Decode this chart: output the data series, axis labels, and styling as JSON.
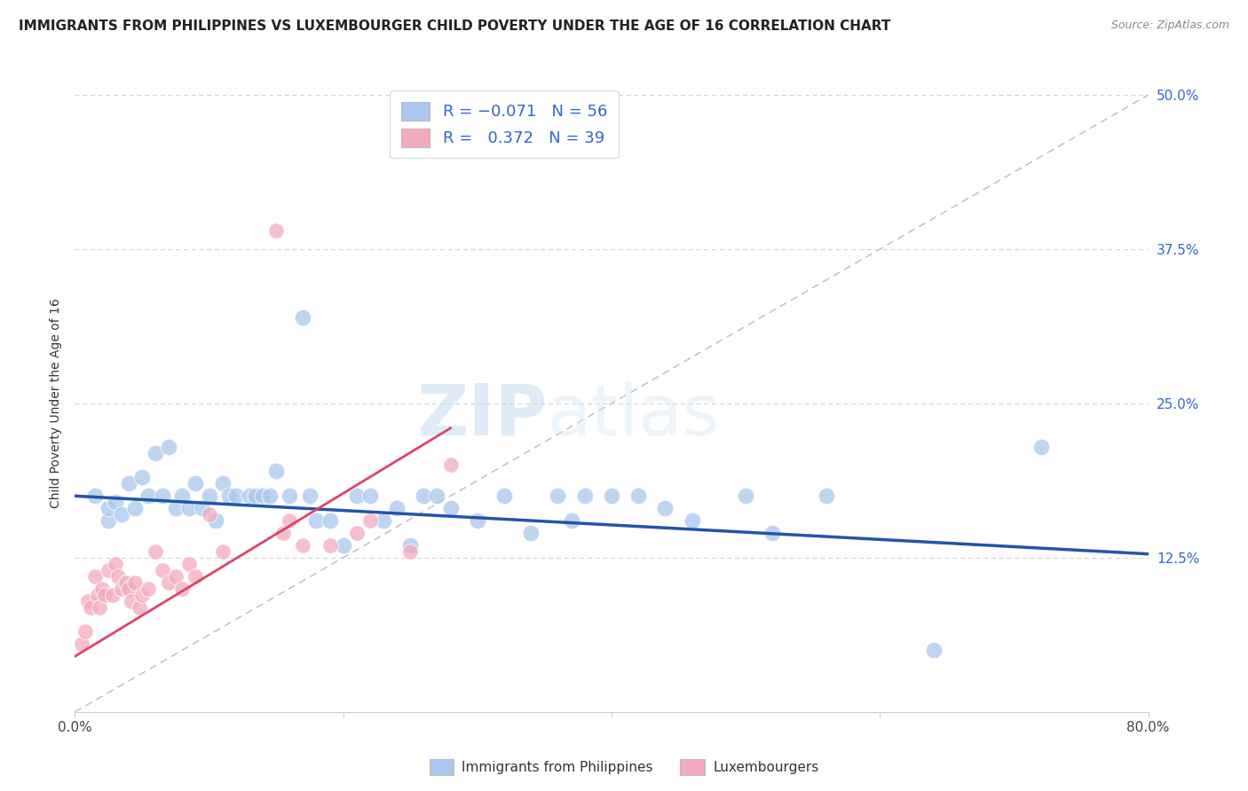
{
  "title": "IMMIGRANTS FROM PHILIPPINES VS LUXEMBOURGER CHILD POVERTY UNDER THE AGE OF 16 CORRELATION CHART",
  "source": "Source: ZipAtlas.com",
  "ylabel": "Child Poverty Under the Age of 16",
  "xlim": [
    0.0,
    0.8
  ],
  "ylim": [
    0.0,
    0.5
  ],
  "xticks": [
    0.0,
    0.2,
    0.4,
    0.6,
    0.8
  ],
  "yticks": [
    0.0,
    0.125,
    0.25,
    0.375,
    0.5
  ],
  "ytick_labels": [
    "",
    "12.5%",
    "25.0%",
    "37.5%",
    "50.0%"
  ],
  "legend_label1": "Immigrants from Philippines",
  "legend_label2": "Luxembourgers",
  "R1": -0.071,
  "N1": 56,
  "R2": 0.372,
  "N2": 39,
  "color_blue": "#A8C8EE",
  "color_pink": "#F4AABE",
  "color_blue_line": "#2255AA",
  "color_pink_line": "#DD4466",
  "color_ref_line": "#BBBBBB",
  "background_color": "#FFFFFF",
  "watermark_zip": "ZIP",
  "watermark_atlas": "atlas",
  "title_fontsize": 11,
  "axis_label_fontsize": 10,
  "tick_fontsize": 11,
  "blue_scatter_x": [
    0.015,
    0.025,
    0.025,
    0.03,
    0.035,
    0.04,
    0.045,
    0.05,
    0.055,
    0.06,
    0.065,
    0.07,
    0.075,
    0.08,
    0.085,
    0.09,
    0.095,
    0.1,
    0.105,
    0.11,
    0.115,
    0.12,
    0.13,
    0.135,
    0.14,
    0.145,
    0.15,
    0.16,
    0.17,
    0.175,
    0.18,
    0.19,
    0.2,
    0.21,
    0.22,
    0.23,
    0.24,
    0.25,
    0.26,
    0.27,
    0.28,
    0.3,
    0.32,
    0.34,
    0.36,
    0.37,
    0.38,
    0.4,
    0.42,
    0.44,
    0.46,
    0.5,
    0.52,
    0.56,
    0.64,
    0.72
  ],
  "blue_scatter_y": [
    0.175,
    0.155,
    0.165,
    0.17,
    0.16,
    0.185,
    0.165,
    0.19,
    0.175,
    0.21,
    0.175,
    0.215,
    0.165,
    0.175,
    0.165,
    0.185,
    0.165,
    0.175,
    0.155,
    0.185,
    0.175,
    0.175,
    0.175,
    0.175,
    0.175,
    0.175,
    0.195,
    0.175,
    0.32,
    0.175,
    0.155,
    0.155,
    0.135,
    0.175,
    0.175,
    0.155,
    0.165,
    0.135,
    0.175,
    0.175,
    0.165,
    0.155,
    0.175,
    0.145,
    0.175,
    0.155,
    0.175,
    0.175,
    0.175,
    0.165,
    0.155,
    0.175,
    0.145,
    0.175,
    0.05,
    0.215
  ],
  "pink_scatter_x": [
    0.005,
    0.008,
    0.01,
    0.012,
    0.015,
    0.017,
    0.018,
    0.02,
    0.022,
    0.025,
    0.028,
    0.03,
    0.032,
    0.035,
    0.038,
    0.04,
    0.042,
    0.045,
    0.048,
    0.05,
    0.055,
    0.06,
    0.065,
    0.07,
    0.075,
    0.08,
    0.085,
    0.09,
    0.1,
    0.11,
    0.15,
    0.155,
    0.16,
    0.17,
    0.19,
    0.21,
    0.22,
    0.25,
    0.28
  ],
  "pink_scatter_y": [
    0.055,
    0.065,
    0.09,
    0.085,
    0.11,
    0.095,
    0.085,
    0.1,
    0.095,
    0.115,
    0.095,
    0.12,
    0.11,
    0.1,
    0.105,
    0.1,
    0.09,
    0.105,
    0.085,
    0.095,
    0.1,
    0.13,
    0.115,
    0.105,
    0.11,
    0.1,
    0.12,
    0.11,
    0.16,
    0.13,
    0.39,
    0.145,
    0.155,
    0.135,
    0.135,
    0.145,
    0.155,
    0.13,
    0.2
  ],
  "blue_line_x0": 0.0,
  "blue_line_x1": 0.8,
  "blue_line_y0": 0.175,
  "blue_line_y1": 0.128,
  "pink_line_x0": 0.0,
  "pink_line_x1": 0.28,
  "pink_line_y0": 0.045,
  "pink_line_y1": 0.23
}
